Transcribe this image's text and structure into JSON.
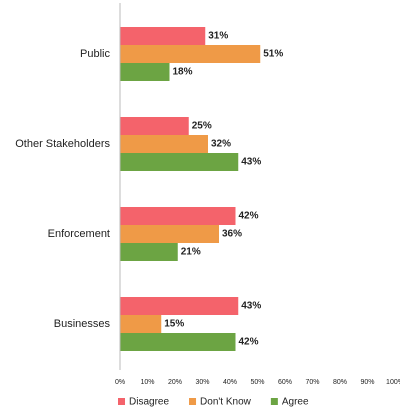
{
  "chart_data": {
    "type": "bar",
    "orientation": "horizontal",
    "categories": [
      "Public",
      "Other Stakeholders",
      "Enforcement",
      "Businesses"
    ],
    "series": [
      {
        "name": "Disagree",
        "color": "#f4636b",
        "values": [
          31,
          25,
          42,
          43
        ],
        "value_labels": [
          "31%",
          "25%",
          "42%",
          "43%"
        ]
      },
      {
        "name": "Don't Know",
        "color": "#ef9a47",
        "values": [
          51,
          32,
          36,
          15
        ],
        "value_labels": [
          "51%",
          "32%",
          "36%",
          "15%"
        ]
      },
      {
        "name": "Agree",
        "color": "#6ca443",
        "values": [
          18,
          43,
          21,
          42
        ],
        "value_labels": [
          "18%",
          "43%",
          "21%",
          "42%"
        ]
      }
    ],
    "xlim": [
      0,
      100
    ],
    "xticks": [
      {
        "value": 0,
        "label": "0%"
      },
      {
        "value": 10,
        "label": "10%"
      },
      {
        "value": 20,
        "label": "20%"
      },
      {
        "value": 30,
        "label": "30%"
      },
      {
        "value": 40,
        "label": "40%"
      },
      {
        "value": 50,
        "label": "50%"
      },
      {
        "value": 60,
        "label": "60%"
      },
      {
        "value": 70,
        "label": "70%"
      },
      {
        "value": 80,
        "label": "80%"
      },
      {
        "value": 90,
        "label": "90%"
      },
      {
        "value": 100,
        "label": "100%"
      }
    ],
    "legend": "bottom",
    "grid": false
  }
}
